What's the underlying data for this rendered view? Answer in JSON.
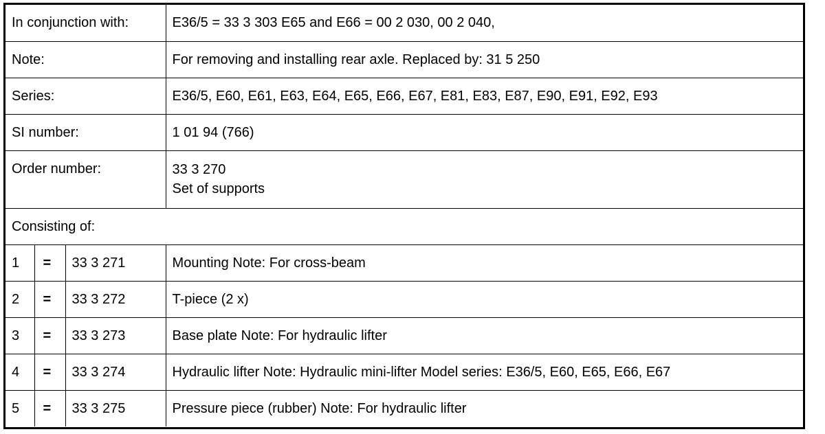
{
  "rows": [
    {
      "label": "In conjunction with:",
      "value": "E36/5 = 33 3 303 E65 and E66 = 00 2 030, 00 2 040,"
    },
    {
      "label": "Note:",
      "value": "For removing and installing rear axle. Replaced by: 31 5 250"
    },
    {
      "label": "Series:",
      "value": "E36/5, E60, E61, E63, E64, E65, E66, E67, E81, E83, E87, E90, E91, E92, E93"
    },
    {
      "label": "SI number:",
      "value": "1 01 94 (766)"
    }
  ],
  "order": {
    "label": "Order number:",
    "number": "33 3 270",
    "name": "Set of supports"
  },
  "consisting_label": "Consisting of:",
  "parts": [
    {
      "pos": "1",
      "eq": "=",
      "number": "33 3 271",
      "desc": "Mounting Note: For cross-beam"
    },
    {
      "pos": "2",
      "eq": "=",
      "number": "33 3 272",
      "desc": "T-piece (2 x)"
    },
    {
      "pos": "3",
      "eq": "=",
      "number": "33 3 273",
      "desc": "Base plate Note: For hydraulic lifter"
    },
    {
      "pos": "4",
      "eq": "=",
      "number": "33 3 274",
      "desc": "Hydraulic lifter Note: Hydraulic mini-lifter Model series: E36/5, E60, E65, E66, E67"
    },
    {
      "pos": "5",
      "eq": "=",
      "number": "33 3 275",
      "desc": "Pressure piece (rubber) Note: For hydraulic lifter"
    }
  ]
}
